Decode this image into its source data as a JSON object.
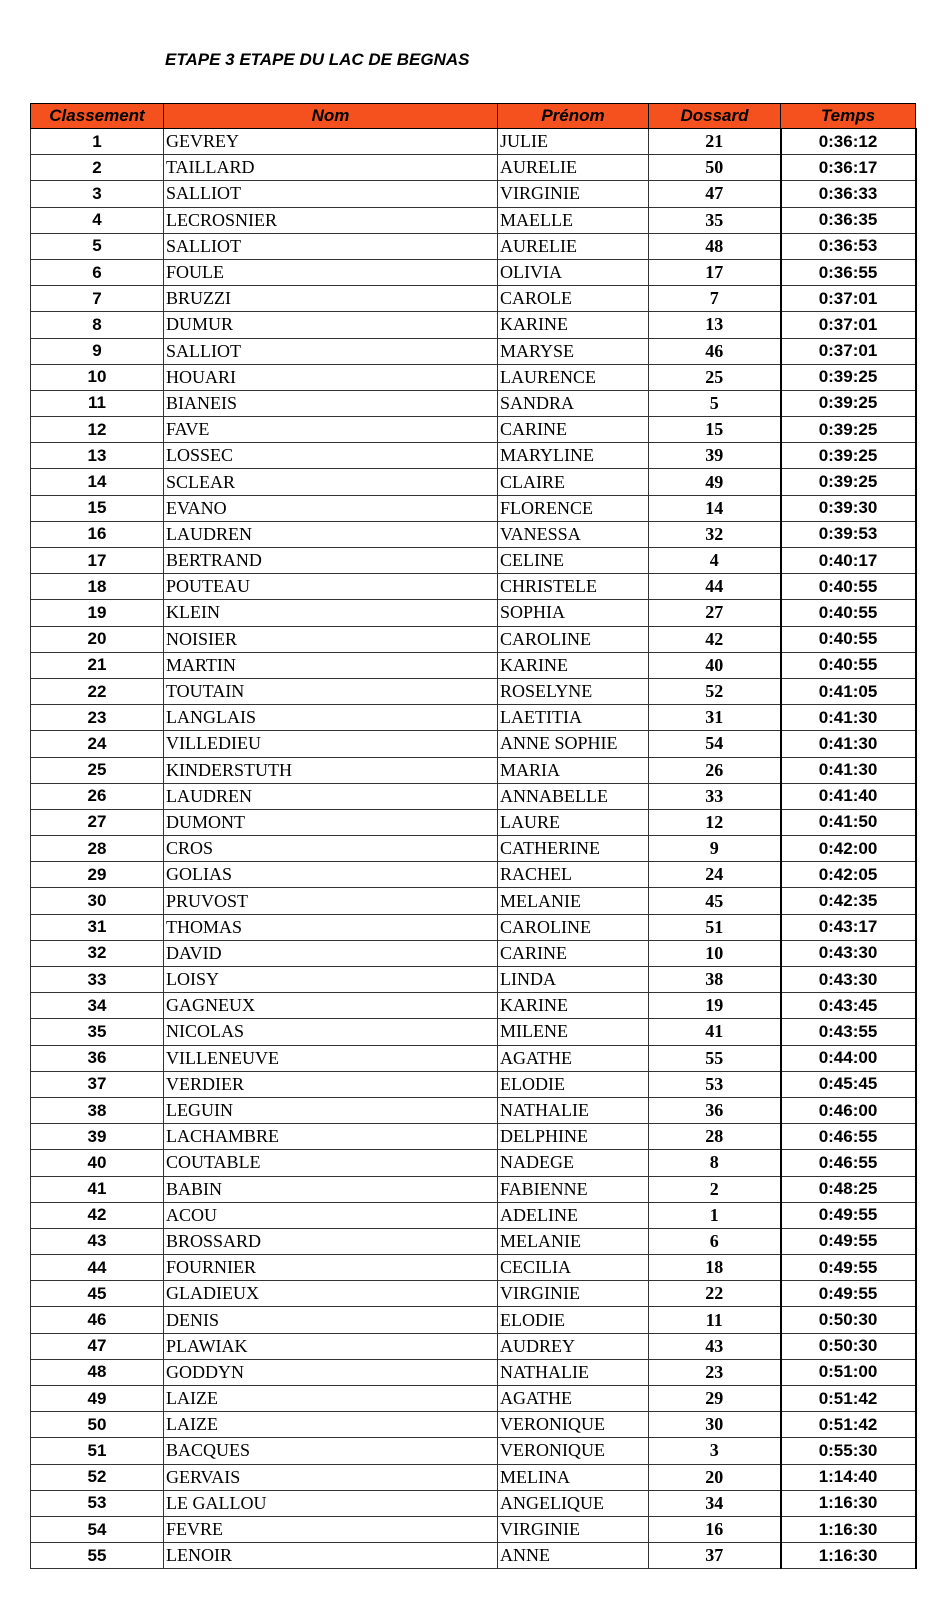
{
  "title": "ETAPE 3 ETAPE DU LAC DE BEGNAS",
  "table": {
    "columns": [
      "Classement",
      "Nom",
      "Prénom",
      "Dossard",
      "Temps"
    ],
    "rows": [
      [
        1,
        "GEVREY",
        "JULIE",
        21,
        "0:36:12"
      ],
      [
        2,
        "TAILLARD",
        "AURELIE",
        50,
        "0:36:17"
      ],
      [
        3,
        "SALLIOT",
        "VIRGINIE",
        47,
        "0:36:33"
      ],
      [
        4,
        "LECROSNIER",
        "MAELLE",
        35,
        "0:36:35"
      ],
      [
        5,
        "SALLIOT",
        "AURELIE",
        48,
        "0:36:53"
      ],
      [
        6,
        "FOULE",
        "OLIVIA",
        17,
        "0:36:55"
      ],
      [
        7,
        "BRUZZI",
        "CAROLE",
        7,
        "0:37:01"
      ],
      [
        8,
        "DUMUR",
        "KARINE",
        13,
        "0:37:01"
      ],
      [
        9,
        "SALLIOT",
        "MARYSE",
        46,
        "0:37:01"
      ],
      [
        10,
        "HOUARI",
        "LAURENCE",
        25,
        "0:39:25"
      ],
      [
        11,
        "BIANEIS",
        "SANDRA",
        5,
        "0:39:25"
      ],
      [
        12,
        "FAVE",
        "CARINE",
        15,
        "0:39:25"
      ],
      [
        13,
        "LOSSEC",
        "MARYLINE",
        39,
        "0:39:25"
      ],
      [
        14,
        "SCLEAR",
        "CLAIRE",
        49,
        "0:39:25"
      ],
      [
        15,
        "EVANO",
        "FLORENCE",
        14,
        "0:39:30"
      ],
      [
        16,
        "LAUDREN",
        "VANESSA",
        32,
        "0:39:53"
      ],
      [
        17,
        "BERTRAND",
        "CELINE",
        4,
        "0:40:17"
      ],
      [
        18,
        "POUTEAU",
        "CHRISTELE",
        44,
        "0:40:55"
      ],
      [
        19,
        "KLEIN",
        "SOPHIA",
        27,
        "0:40:55"
      ],
      [
        20,
        "NOISIER",
        "CAROLINE",
        42,
        "0:40:55"
      ],
      [
        21,
        "MARTIN",
        "KARINE",
        40,
        "0:40:55"
      ],
      [
        22,
        "TOUTAIN",
        "ROSELYNE",
        52,
        "0:41:05"
      ],
      [
        23,
        "LANGLAIS",
        "LAETITIA",
        31,
        "0:41:30"
      ],
      [
        24,
        "VILLEDIEU",
        "ANNE SOPHIE",
        54,
        "0:41:30"
      ],
      [
        25,
        "KINDERSTUTH",
        "MARIA",
        26,
        "0:41:30"
      ],
      [
        26,
        "LAUDREN",
        "ANNABELLE",
        33,
        "0:41:40"
      ],
      [
        27,
        "DUMONT",
        "LAURE",
        12,
        "0:41:50"
      ],
      [
        28,
        "CROS",
        "CATHERINE",
        9,
        "0:42:00"
      ],
      [
        29,
        "GOLIAS",
        "RACHEL",
        24,
        "0:42:05"
      ],
      [
        30,
        "PRUVOST",
        "MELANIE",
        45,
        "0:42:35"
      ],
      [
        31,
        "THOMAS",
        "CAROLINE",
        51,
        "0:43:17"
      ],
      [
        32,
        "DAVID",
        "CARINE",
        10,
        "0:43:30"
      ],
      [
        33,
        "LOISY",
        "LINDA",
        38,
        "0:43:30"
      ],
      [
        34,
        "GAGNEUX",
        "KARINE",
        19,
        "0:43:45"
      ],
      [
        35,
        "NICOLAS",
        "MILENE",
        41,
        "0:43:55"
      ],
      [
        36,
        "VILLENEUVE",
        "AGATHE",
        55,
        "0:44:00"
      ],
      [
        37,
        "VERDIER",
        "ELODIE",
        53,
        "0:45:45"
      ],
      [
        38,
        "LEGUIN",
        "NATHALIE",
        36,
        "0:46:00"
      ],
      [
        39,
        "LACHAMBRE",
        "DELPHINE",
        28,
        "0:46:55"
      ],
      [
        40,
        "COUTABLE",
        "NADEGE",
        8,
        "0:46:55"
      ],
      [
        41,
        "BABIN",
        "FABIENNE",
        2,
        "0:48:25"
      ],
      [
        42,
        "ACOU",
        "ADELINE",
        1,
        "0:49:55"
      ],
      [
        43,
        "BROSSARD",
        "MELANIE",
        6,
        "0:49:55"
      ],
      [
        44,
        "FOURNIER",
        "CECILIA",
        18,
        "0:49:55"
      ],
      [
        45,
        "GLADIEUX",
        "VIRGINIE",
        22,
        "0:49:55"
      ],
      [
        46,
        "DENIS",
        "ELODIE",
        11,
        "0:50:30"
      ],
      [
        47,
        "PLAWIAK",
        "AUDREY",
        43,
        "0:50:30"
      ],
      [
        48,
        "GODDYN",
        "NATHALIE",
        23,
        "0:51:00"
      ],
      [
        49,
        "LAIZE",
        "AGATHE",
        29,
        "0:51:42"
      ],
      [
        50,
        "LAIZE",
        "VERONIQUE",
        30,
        "0:51:42"
      ],
      [
        51,
        "BACQUES",
        "VERONIQUE",
        3,
        "0:55:30"
      ],
      [
        52,
        "GERVAIS",
        "MELINA",
        20,
        "1:14:40"
      ],
      [
        53,
        "LE GALLOU",
        "ANGELIQUE",
        34,
        "1:16:30"
      ],
      [
        54,
        "FEVRE",
        "VIRGINIE",
        16,
        "1:16:30"
      ],
      [
        55,
        "LENOIR",
        "ANNE",
        37,
        "1:16:30"
      ]
    ]
  }
}
